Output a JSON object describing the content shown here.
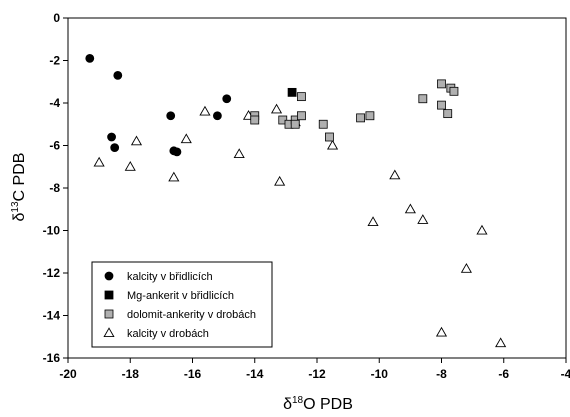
{
  "chart_data": {
    "type": "scatter",
    "xlabel": "δ18O PDB",
    "ylabel": "δ13C PDB",
    "xlim": [
      -20,
      -4
    ],
    "ylim": [
      -16,
      0
    ],
    "x_ticks": [
      -20,
      -18,
      -16,
      -14,
      -12,
      -10,
      -8,
      -6,
      -4
    ],
    "y_ticks": [
      0,
      -2,
      -4,
      -6,
      -8,
      -10,
      -12,
      -14,
      -16
    ],
    "grid": false,
    "legend_position": "bottom-left",
    "series": [
      {
        "name": "kalcity v břidlicích",
        "marker": "circle",
        "color": "#000000",
        "points": [
          [
            -19.3,
            -1.9
          ],
          [
            -18.4,
            -2.7
          ],
          [
            -18.6,
            -5.6
          ],
          [
            -18.5,
            -6.1
          ],
          [
            -16.7,
            -4.6
          ],
          [
            -16.6,
            -6.25
          ],
          [
            -16.5,
            -6.3
          ],
          [
            -15.2,
            -4.6
          ],
          [
            -14.9,
            -3.8
          ]
        ]
      },
      {
        "name": "Mg-ankerit v břidlicích",
        "marker": "square",
        "color": "#000000",
        "points": [
          [
            -12.8,
            -3.5
          ]
        ]
      },
      {
        "name": "dolomit-ankerity v drobách",
        "marker": "square",
        "color": "#b0b0b0",
        "points": [
          [
            -14.0,
            -4.6
          ],
          [
            -14.0,
            -4.8
          ],
          [
            -13.1,
            -4.8
          ],
          [
            -12.9,
            -5.0
          ],
          [
            -12.7,
            -4.8
          ],
          [
            -12.7,
            -5.0
          ],
          [
            -12.5,
            -4.6
          ],
          [
            -12.5,
            -3.7
          ],
          [
            -11.8,
            -5.0
          ],
          [
            -11.6,
            -5.6
          ],
          [
            -10.6,
            -4.7
          ],
          [
            -10.3,
            -4.6
          ],
          [
            -8.6,
            -3.8
          ],
          [
            -8.0,
            -3.1
          ],
          [
            -8.0,
            -4.1
          ],
          [
            -7.8,
            -4.5
          ],
          [
            -7.7,
            -3.3
          ],
          [
            -7.6,
            -3.45
          ]
        ]
      },
      {
        "name": "kalcity v drobách",
        "marker": "triangle",
        "color": "#ffffff",
        "points": [
          [
            -19.0,
            -6.8
          ],
          [
            -18.0,
            -7.0
          ],
          [
            -17.8,
            -5.8
          ],
          [
            -16.6,
            -7.5
          ],
          [
            -16.2,
            -5.7
          ],
          [
            -15.6,
            -4.4
          ],
          [
            -14.5,
            -6.4
          ],
          [
            -14.2,
            -4.6
          ],
          [
            -13.3,
            -4.3
          ],
          [
            -13.2,
            -7.7
          ],
          [
            -12.7,
            -4.9
          ],
          [
            -11.5,
            -6.0
          ],
          [
            -10.2,
            -9.6
          ],
          [
            -9.5,
            -7.4
          ],
          [
            -9.0,
            -9.0
          ],
          [
            -8.6,
            -9.5
          ],
          [
            -8.0,
            -14.8
          ],
          [
            -7.2,
            -11.8
          ],
          [
            -6.7,
            -10.0
          ],
          [
            -6.1,
            -15.3
          ]
        ]
      }
    ]
  }
}
